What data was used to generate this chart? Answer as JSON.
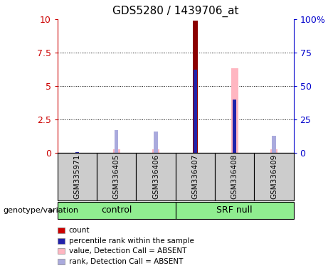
{
  "title": "GDS5280 / 1439706_at",
  "samples": [
    "GSM335971",
    "GSM336405",
    "GSM336406",
    "GSM336407",
    "GSM336408",
    "GSM336409"
  ],
  "groups": {
    "control": [
      0,
      1,
      2
    ],
    "SRF null": [
      3,
      4,
      5
    ]
  },
  "ylim_left": [
    0,
    10
  ],
  "ylim_right": [
    0,
    100
  ],
  "yticks_left": [
    0,
    2.5,
    5,
    7.5,
    10
  ],
  "yticks_right": [
    0,
    25,
    50,
    75,
    100
  ],
  "red_bars": {
    "values": [
      0,
      0,
      0,
      9.9,
      0,
      0
    ],
    "color": "#8B0000"
  },
  "pink_bars": {
    "values": [
      0,
      0.28,
      0.28,
      0,
      6.3,
      0.28
    ],
    "color": "#FFB6C1"
  },
  "blue_bars": {
    "values": [
      0.03,
      0,
      0,
      6.2,
      4.0,
      0
    ],
    "color": "#2222AA"
  },
  "light_blue_bars": {
    "values": [
      0,
      1.7,
      1.6,
      0,
      0,
      1.3
    ],
    "color": "#AAAADD"
  },
  "red_bar_width": 0.12,
  "pink_bar_width": 0.18,
  "blue_bar_width": 0.1,
  "lb_bar_width": 0.1,
  "background_color": "#ffffff",
  "group_box_color": "#cccccc",
  "group_label_bg": "#90EE90",
  "left_axis_color": "#CC0000",
  "right_axis_color": "#0000CC",
  "legend_items": [
    {
      "label": "count",
      "color": "#CC0000"
    },
    {
      "label": "percentile rank within the sample",
      "color": "#2222AA"
    },
    {
      "label": "value, Detection Call = ABSENT",
      "color": "#FFB6C1"
    },
    {
      "label": "rank, Detection Call = ABSENT",
      "color": "#AAAADD"
    }
  ],
  "genotype_label": "genotype/variation"
}
